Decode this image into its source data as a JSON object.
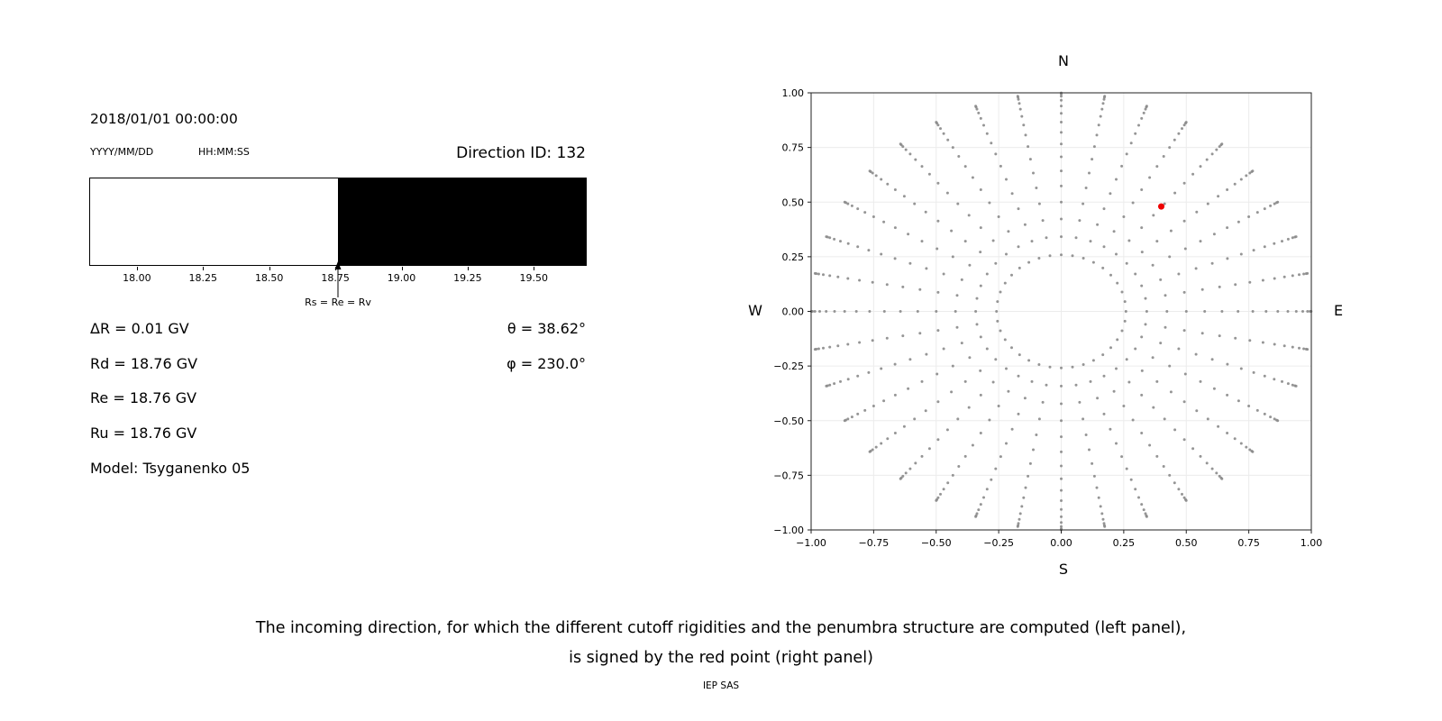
{
  "left_panel": {
    "datetime": "2018/01/01 00:00:00",
    "date_format_label": "YYYY/MM/DD",
    "time_format_label": "HH:MM:SS",
    "direction_id": "Direction ID: 132",
    "rows_left": [
      "ΔR = 0.01 GV",
      "Rd = 18.76 GV",
      "Re = 18.76 GV",
      "Ru = 18.76 GV",
      "Model: Tsyganenko 05"
    ],
    "rows_right": [
      "θ = 38.62°",
      "φ = 230.0°"
    ]
  },
  "caption": {
    "line1": "The incoming direction, for which the different cutoff rigidities and the penumbra structure are computed (left panel),",
    "line2": "is signed by the red point (right panel)",
    "credit": "IEP SAS"
  },
  "chart_data": [
    {
      "type": "area",
      "title": "Penumbra structure bar",
      "x_range": [
        17.82,
        19.7
      ],
      "segments": [
        {
          "from": 17.82,
          "to": 18.76,
          "color": "#ffffff"
        },
        {
          "from": 18.76,
          "to": 19.7,
          "color": "#000000"
        }
      ],
      "x_tick_values": [
        18.0,
        18.25,
        18.5,
        18.75,
        19.0,
        19.25,
        19.5
      ],
      "x_tick_labels": [
        "18.00",
        "18.25",
        "18.50",
        "18.75",
        "19.00",
        "19.25",
        "19.50"
      ],
      "marker": {
        "x": 18.76,
        "label": "Rs = Re = Rv"
      },
      "values_gv": {
        "delta_r": 0.01,
        "rd": 18.76,
        "re": 18.76,
        "ru": 18.76
      },
      "model": "Tsyganenko 05"
    },
    {
      "type": "scatter",
      "title": "Incoming direction map",
      "xlim": [
        -1,
        1
      ],
      "ylim": [
        -1,
        1
      ],
      "grid": true,
      "x_tick_values": [
        -1,
        -0.75,
        -0.5,
        -0.25,
        0,
        0.25,
        0.5,
        0.75,
        1
      ],
      "x_tick_labels": [
        "−1.00",
        "−0.75",
        "−0.50",
        "−0.25",
        "0.00",
        "0.25",
        "0.50",
        "0.75",
        "1.00"
      ],
      "y_tick_values": [
        -1,
        -0.75,
        -0.5,
        -0.25,
        0,
        0.25,
        0.5,
        0.75,
        1
      ],
      "y_tick_labels": [
        "−1.00",
        "−0.75",
        "−0.50",
        "−0.25",
        "0.00",
        "0.25",
        "0.50",
        "0.75",
        "1.00"
      ],
      "direction_labels": {
        "top": "N",
        "bottom": "S",
        "left": "W",
        "right": "E"
      },
      "grid_points": {
        "azimuth_start_deg": 0,
        "azimuth_step_deg": 10,
        "azimuth_count": 36,
        "zenith_deg": [
          15,
          20,
          25,
          30,
          35,
          40,
          45,
          50,
          55,
          60,
          65,
          70,
          75,
          80,
          84,
          88
        ],
        "projection": "x = sin(zenith)*sin(azimuth), y = sin(zenith)*cos(azimuth)"
      },
      "dot_color": "#8a8a8a",
      "red_point": {
        "x": 0.4,
        "y": 0.48,
        "color": "#ee0000"
      },
      "gridline_color": "#ececec",
      "spine_color": "#222222"
    }
  ]
}
